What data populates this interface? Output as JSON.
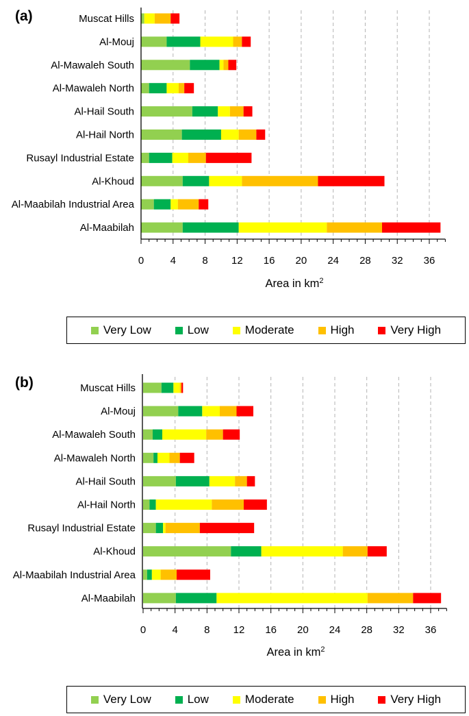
{
  "chart_data": [
    {
      "type": "bar",
      "orientation": "horizontal",
      "stacked": true,
      "panel_label": "(a)",
      "categories": [
        "Muscat Hills",
        "Al-Mouj",
        "Al-Mawaleh South",
        "Al-Mawaleh North",
        "Al-Hail South",
        "Al-Hail North",
        "Rusayl Industrial Estate",
        "Al-Khoud",
        "Al-Maabilah Industrial Area",
        "Al-Maabilah"
      ],
      "series": [
        {
          "name": "Very Low",
          "values": [
            0.4,
            3.2,
            6.1,
            1.0,
            6.4,
            5.1,
            1.0,
            5.2,
            1.6,
            5.2
          ]
        },
        {
          "name": "Low",
          "values": [
            0.0,
            4.2,
            3.7,
            2.2,
            3.2,
            4.9,
            2.9,
            3.3,
            2.1,
            7.0
          ]
        },
        {
          "name": "Moderate",
          "values": [
            1.3,
            4.1,
            0.5,
            1.5,
            1.5,
            2.2,
            2.0,
            4.1,
            0.9,
            11.0
          ]
        },
        {
          "name": "High",
          "values": [
            2.0,
            1.1,
            0.6,
            0.7,
            1.7,
            2.2,
            2.2,
            9.5,
            2.6,
            6.9
          ]
        },
        {
          "name": "Very High",
          "values": [
            1.1,
            1.1,
            1.0,
            1.2,
            1.1,
            1.1,
            5.7,
            8.3,
            1.2,
            7.3
          ]
        }
      ],
      "xlabel": "Area in km",
      "xlabel_sup": "2",
      "xlim": [
        0,
        38
      ],
      "xticks": [
        "0",
        "4",
        "8",
        "12",
        "16",
        "20",
        "24",
        "28",
        "32",
        "36"
      ],
      "grid": "vertical-dashed",
      "legend": "bottom"
    },
    {
      "type": "bar",
      "orientation": "horizontal",
      "stacked": true,
      "panel_label": "(b)",
      "categories": [
        "Muscat Hills",
        "Al-Mouj",
        "Al-Mawaleh South",
        "Al-Mawaleh North",
        "Al-Hail South",
        "Al-Hail North",
        "Rusayl Industrial Estate",
        "Al-Khoud",
        "Al-Maabilah Industrial Area",
        "Al-Maabilah"
      ],
      "series": [
        {
          "name": "Very Low",
          "values": [
            2.3,
            4.4,
            1.2,
            1.3,
            4.1,
            0.8,
            1.6,
            11.0,
            0.5,
            4.1
          ]
        },
        {
          "name": "Low",
          "values": [
            1.5,
            3.0,
            1.2,
            0.5,
            4.2,
            0.8,
            0.9,
            3.8,
            0.6,
            5.1
          ]
        },
        {
          "name": "Moderate",
          "values": [
            0.8,
            2.2,
            5.5,
            1.5,
            3.2,
            7.0,
            0.3,
            10.2,
            1.1,
            18.9
          ]
        },
        {
          "name": "High",
          "values": [
            0.2,
            2.1,
            2.1,
            1.3,
            1.5,
            4.0,
            4.3,
            3.1,
            2.0,
            5.7
          ]
        },
        {
          "name": "Very High",
          "values": [
            0.2,
            2.1,
            2.1,
            1.8,
            1.0,
            2.9,
            6.8,
            2.4,
            4.2,
            3.5
          ]
        }
      ],
      "xlabel": "Area in km",
      "xlabel_sup": "2",
      "xlim": [
        0,
        38
      ],
      "xticks": [
        "0",
        "4",
        "8",
        "12",
        "16",
        "20",
        "24",
        "28",
        "32",
        "36"
      ],
      "grid": "vertical-dashed",
      "legend": "bottom"
    }
  ],
  "colors": {
    "Very Low": "#92d050",
    "Low": "#00b050",
    "Moderate": "#ffff00",
    "High": "#ffc000",
    "Very High": "#ff0000"
  }
}
